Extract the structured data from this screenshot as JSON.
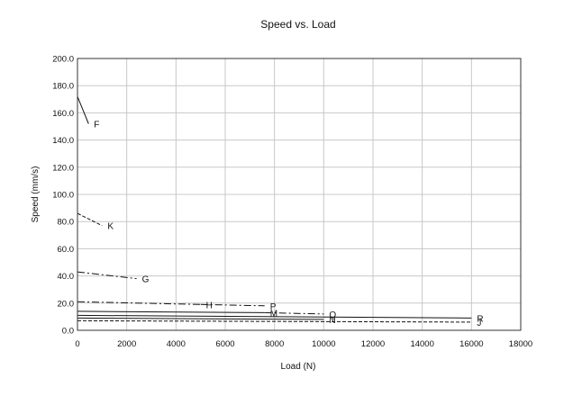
{
  "chart_data": {
    "type": "line",
    "title": "Speed vs. Load",
    "xlabel": "Load (N)",
    "ylabel": "Speed (mm/s)",
    "xlim": [
      0,
      18000
    ],
    "ylim": [
      0,
      200
    ],
    "x_ticks": [
      0,
      2000,
      4000,
      6000,
      8000,
      10000,
      12000,
      14000,
      16000,
      18000
    ],
    "x_tick_labels": [
      "0",
      "2000",
      "4000",
      "6000",
      "8000",
      "10000",
      "12000",
      "14000",
      "16000",
      "18000"
    ],
    "y_ticks": [
      0,
      20,
      40,
      60,
      80,
      100,
      120,
      140,
      160,
      180,
      200
    ],
    "y_tick_labels": [
      "0.0",
      "20.0",
      "40.0",
      "60.0",
      "80.0",
      "100.0",
      "120.0",
      "140.0",
      "160.0",
      "180.0",
      "200.0"
    ],
    "grid": true,
    "series": [
      {
        "name": "F",
        "style": "solid",
        "x": [
          0,
          450
        ],
        "y": [
          172,
          152
        ]
      },
      {
        "name": "K",
        "style": "dashed",
        "x": [
          0,
          1000
        ],
        "y": [
          86,
          77
        ]
      },
      {
        "name": "G",
        "style": "dashdot",
        "x": [
          0,
          2400
        ],
        "y": [
          43,
          38
        ]
      },
      {
        "name": "H",
        "style": "dashdot",
        "x": [
          0,
          5000
        ],
        "y": [
          21,
          19
        ]
      },
      {
        "name": "P",
        "style": "dashdot",
        "x": [
          5000,
          7600
        ],
        "y": [
          19,
          18
        ]
      },
      {
        "name": "M",
        "style": "solid",
        "x": [
          0,
          7600
        ],
        "y": [
          14,
          13
        ]
      },
      {
        "name": "Q",
        "style": "dashdot",
        "x": [
          7600,
          10000
        ],
        "y": [
          13,
          12
        ]
      },
      {
        "name": "R",
        "style": "solid",
        "x": [
          0,
          16000
        ],
        "y": [
          11,
          9
        ]
      },
      {
        "name": "N",
        "style": "solid",
        "x": [
          0,
          10000
        ],
        "y": [
          9,
          8
        ]
      },
      {
        "name": "J",
        "style": "dashed",
        "x": [
          0,
          16000
        ],
        "y": [
          7,
          6
        ]
      }
    ]
  }
}
